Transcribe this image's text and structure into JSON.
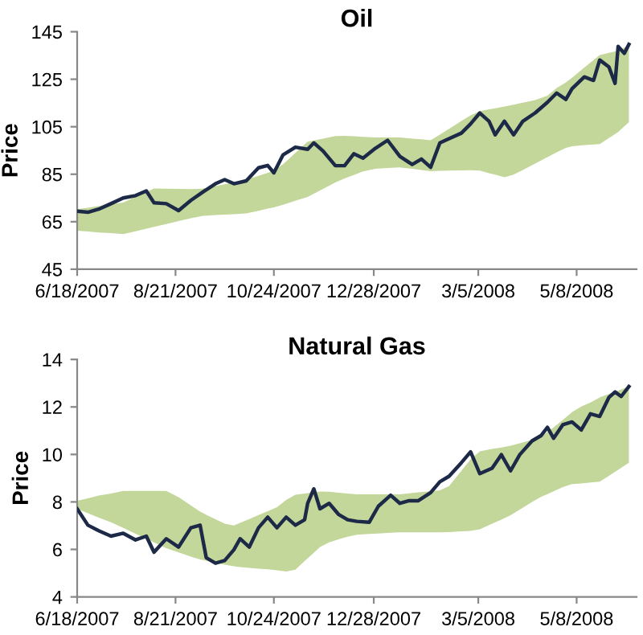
{
  "chart_data": [
    {
      "type": "line",
      "title": "Oil",
      "ylabel": "Price",
      "ylim": [
        45,
        145
      ],
      "yticks": [
        45,
        65,
        85,
        105,
        125,
        145
      ],
      "xlim": [
        "2007-06-18",
        "2008-06-16"
      ],
      "xticks": [
        {
          "value": "2007-06-18",
          "label": "6/18/2007"
        },
        {
          "value": "2007-08-21",
          "label": "8/21/2007"
        },
        {
          "value": "2007-10-24",
          "label": "10/24/2007"
        },
        {
          "value": "2007-12-28",
          "label": "12/28/2007"
        },
        {
          "value": "2008-03-05",
          "label": "3/5/2008"
        },
        {
          "value": "2008-05-08",
          "label": "5/8/2008"
        }
      ],
      "grid": false,
      "legend": false,
      "series": [
        {
          "color": "#1c2a48",
          "x": [
            "2007-06-18",
            "2007-06-25",
            "2007-07-02",
            "2007-07-10",
            "2007-07-18",
            "2007-07-26",
            "2007-08-02",
            "2007-08-07",
            "2007-08-15",
            "2007-08-23",
            "2007-08-31",
            "2007-09-08",
            "2007-09-16",
            "2007-09-22",
            "2007-09-28",
            "2007-10-06",
            "2007-10-14",
            "2007-10-20",
            "2007-10-24",
            "2007-10-30",
            "2007-11-07",
            "2007-11-15",
            "2007-11-19",
            "2007-11-25",
            "2007-12-03",
            "2007-12-09",
            "2007-12-15",
            "2007-12-21",
            "2007-12-29",
            "2008-01-06",
            "2008-01-14",
            "2008-01-22",
            "2008-01-28",
            "2008-02-03",
            "2008-02-09",
            "2008-02-15",
            "2008-02-23",
            "2008-02-29",
            "2008-03-06",
            "2008-03-12",
            "2008-03-16",
            "2008-03-22",
            "2008-03-28",
            "2008-04-03",
            "2008-04-11",
            "2008-04-19",
            "2008-04-25",
            "2008-05-01",
            "2008-05-05",
            "2008-05-13",
            "2008-05-19",
            "2008-05-23",
            "2008-05-29",
            "2008-06-02",
            "2008-06-04",
            "2008-06-08",
            "2008-06-11"
          ],
          "values": [
            69.4,
            69,
            70.3,
            72.6,
            75,
            76,
            78,
            73,
            72.6,
            69.7,
            74,
            77.6,
            81,
            82.7,
            81,
            82.2,
            87.7,
            88.7,
            85.6,
            93.2,
            96.4,
            95.5,
            98.2,
            94.8,
            88.6,
            88.6,
            93.6,
            91.8,
            95.9,
            99.3,
            92.5,
            89.1,
            91.4,
            87.9,
            98.2,
            100,
            102.3,
            106.2,
            110.8,
            107.3,
            101.6,
            107.3,
            101.6,
            107.3,
            110.8,
            115.3,
            119.2,
            116.5,
            121,
            126,
            124.5,
            133.1,
            130.2,
            123.3,
            138.8,
            135.9,
            139.7
          ],
          "lower": [
            61.2,
            60.9,
            60.5,
            60.2,
            59.8,
            61,
            62.1,
            62.8,
            64,
            65.3,
            66.5,
            67.5,
            67.8,
            68,
            68.2,
            68.5,
            69.6,
            70.5,
            71,
            72.1,
            73.8,
            75.4,
            76.8,
            78.8,
            81.5,
            83.2,
            84.7,
            86.2,
            87.3,
            87.6,
            87.9,
            87.3,
            86.8,
            86.3,
            86.4,
            86.5,
            86.6,
            86.7,
            86.5,
            85.4,
            84.8,
            83.7,
            84.8,
            86.8,
            89.5,
            92.2,
            94.2,
            96.1,
            96.8,
            97.3,
            97.5,
            97.7,
            100.2,
            101.9,
            102.8,
            105.1,
            106.9
          ],
          "upper": [
            70.3,
            70.9,
            71.6,
            72.4,
            73.1,
            75.5,
            77.5,
            79,
            78.9,
            78.8,
            78.7,
            78.9,
            80,
            80.8,
            81.6,
            82.7,
            84.3,
            85.6,
            86.4,
            89.2,
            94,
            98.7,
            99.2,
            100,
            101.1,
            101.2,
            101,
            100.7,
            100.5,
            100.5,
            100.5,
            100,
            99.7,
            99.3,
            101.7,
            104.1,
            107.4,
            109.8,
            111.6,
            112.3,
            112.8,
            113.5,
            114.3,
            115.1,
            116.2,
            118.1,
            121.3,
            123.7,
            125.6,
            129.9,
            133.1,
            135.2,
            136.1,
            136.7,
            137,
            138.3,
            139.3
          ]
        }
      ]
    },
    {
      "type": "line",
      "title": "Natural Gas",
      "ylabel": "Price",
      "ylim": [
        4,
        14
      ],
      "yticks": [
        4,
        6,
        8,
        10,
        12,
        14
      ],
      "xlim": [
        "2007-06-18",
        "2008-06-16"
      ],
      "xticks": [
        {
          "value": "2007-06-18",
          "label": "6/18/2007"
        },
        {
          "value": "2007-08-21",
          "label": "8/21/2007"
        },
        {
          "value": "2007-10-24",
          "label": "10/24/2007"
        },
        {
          "value": "2007-12-28",
          "label": "12/28/2007"
        },
        {
          "value": "2008-03-05",
          "label": "3/5/2008"
        },
        {
          "value": "2008-05-08",
          "label": "5/8/2008"
        }
      ],
      "grid": false,
      "legend": false,
      "series": [
        {
          "color": "#1c2a48",
          "x": [
            "2007-06-18",
            "2007-06-25",
            "2007-07-02",
            "2007-07-10",
            "2007-07-18",
            "2007-07-26",
            "2007-08-02",
            "2007-08-07",
            "2007-08-15",
            "2007-08-23",
            "2007-08-31",
            "2007-09-06",
            "2007-09-10",
            "2007-09-16",
            "2007-09-22",
            "2007-09-28",
            "2007-10-02",
            "2007-10-08",
            "2007-10-14",
            "2007-10-20",
            "2007-10-26",
            "2007-11-01",
            "2007-11-07",
            "2007-11-13",
            "2007-11-15",
            "2007-11-19",
            "2007-11-23",
            "2007-11-29",
            "2007-12-05",
            "2007-12-11",
            "2007-12-17",
            "2007-12-25",
            "2007-12-31",
            "2008-01-08",
            "2008-01-14",
            "2008-01-20",
            "2008-01-26",
            "2008-02-03",
            "2008-02-09",
            "2008-02-15",
            "2008-02-23",
            "2008-02-29",
            "2008-03-06",
            "2008-03-14",
            "2008-03-20",
            "2008-03-26",
            "2008-04-01",
            "2008-04-09",
            "2008-04-15",
            "2008-04-19",
            "2008-04-23",
            "2008-04-29",
            "2008-05-05",
            "2008-05-11",
            "2008-05-17",
            "2008-05-23",
            "2008-05-29",
            "2008-06-02",
            "2008-06-06",
            "2008-06-11"
          ],
          "values": [
            7.71,
            7.02,
            6.79,
            6.56,
            6.68,
            6.4,
            6.56,
            5.88,
            6.45,
            6.1,
            6.91,
            7.02,
            5.65,
            5.42,
            5.53,
            5.99,
            6.45,
            6.1,
            6.91,
            7.36,
            6.91,
            7.36,
            7.02,
            7.25,
            7.94,
            8.55,
            7.71,
            7.94,
            7.48,
            7.25,
            7.18,
            7.14,
            7.82,
            8.28,
            7.94,
            8.05,
            8.05,
            8.39,
            8.85,
            9.08,
            9.65,
            10.11,
            9.19,
            9.42,
            9.99,
            9.31,
            9.99,
            10.57,
            10.8,
            11.14,
            10.68,
            11.25,
            11.37,
            11.03,
            11.71,
            11.6,
            12.4,
            12.63,
            12.44,
            12.86
          ],
          "lower": [
            7.71,
            7.52,
            7.34,
            7.14,
            6.91,
            6.66,
            6.45,
            6.3,
            6.05,
            5.87,
            5.7,
            5.58,
            5.52,
            5.44,
            5.36,
            5.29,
            5.26,
            5.22,
            5.19,
            5.16,
            5.12,
            5.07,
            5.15,
            5.51,
            5.63,
            5.86,
            6.1,
            6.3,
            6.42,
            6.53,
            6.62,
            6.65,
            6.67,
            6.7,
            6.72,
            6.72,
            6.72,
            6.72,
            6.72,
            6.73,
            6.76,
            6.78,
            6.85,
            7.08,
            7.25,
            7.44,
            7.68,
            8,
            8.22,
            8.33,
            8.45,
            8.62,
            8.75,
            8.78,
            8.82,
            8.85,
            9.1,
            9.27,
            9.44,
            9.65
          ],
          "upper": [
            8.05,
            8.15,
            8.27,
            8.35,
            8.46,
            8.46,
            8.46,
            8.46,
            8.46,
            8.2,
            7.85,
            7.59,
            7.46,
            7.27,
            7.08,
            7.01,
            7.12,
            7.28,
            7.45,
            7.61,
            7.78,
            8.08,
            8.3,
            8.35,
            8.37,
            8.41,
            8.44,
            8.43,
            8.39,
            8.35,
            8.32,
            8.32,
            8.32,
            8.32,
            8.32,
            8.36,
            8.4,
            8.45,
            8.49,
            8.67,
            9.31,
            9.79,
            10.13,
            10.23,
            10.29,
            10.37,
            10.47,
            10.61,
            10.73,
            10.94,
            11.14,
            11.45,
            11.78,
            12.02,
            12.19,
            12.4,
            12.55,
            12.64,
            12.74,
            12.86
          ]
        }
      ]
    }
  ]
}
